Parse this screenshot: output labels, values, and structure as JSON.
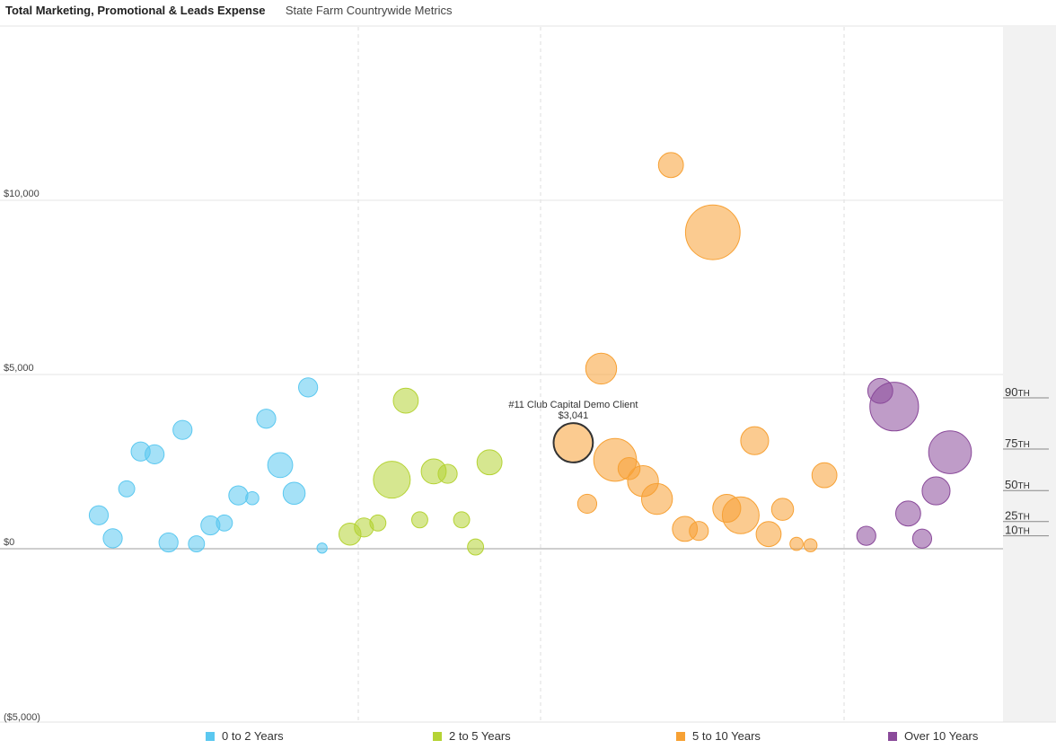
{
  "header": {
    "title": "Total Marketing, Promotional & Leads Expense",
    "subtitle": "State Farm Countrywide Metrics"
  },
  "colors": {
    "0 to 2 Years": "#5bc8f0",
    "2 to 5 Years": "#b5d334",
    "5 to 10 Years": "#f7a134",
    "Over 10 Years": "#8a4a9a"
  },
  "chart_data": {
    "type": "scatter",
    "title": "Total Marketing, Promotional & Leads Expense",
    "xlabel": "",
    "ylabel": "",
    "ylim": [
      -5000,
      15000
    ],
    "yticks": [
      {
        "value": 10000,
        "label": "$10,000"
      },
      {
        "value": 5000,
        "label": "$5,000"
      },
      {
        "value": 0,
        "label": "$0"
      },
      {
        "value": -5000,
        "label": "($5,000)"
      }
    ],
    "grid": true,
    "legend_position": "bottom",
    "percentiles": [
      {
        "num": "90",
        "suffix": "TH",
        "value": 4330
      },
      {
        "num": "75",
        "suffix": "TH",
        "value": 2860
      },
      {
        "num": "50",
        "suffix": "TH",
        "value": 1670
      },
      {
        "num": "25",
        "suffix": "TH",
        "value": 780
      },
      {
        "num": "10",
        "suffix": "TH",
        "value": 370
      }
    ],
    "highlight": {
      "name": "#11 Club Capital Demo Client",
      "value_label": "$3,041",
      "series": "5 to 10 Years",
      "x": 35,
      "y": 3041,
      "size": 3
    },
    "series": [
      {
        "name": "0 to 2 Years",
        "points": [
          {
            "x": 1,
            "y": 960,
            "size": 2
          },
          {
            "x": 2,
            "y": 300,
            "size": 2
          },
          {
            "x": 3,
            "y": 1720,
            "size": 1.5
          },
          {
            "x": 4,
            "y": 2790,
            "size": 2
          },
          {
            "x": 5,
            "y": 2710,
            "size": 2
          },
          {
            "x": 6,
            "y": 180,
            "size": 2
          },
          {
            "x": 7,
            "y": 3410,
            "size": 2
          },
          {
            "x": 8,
            "y": 140,
            "size": 1.5
          },
          {
            "x": 9,
            "y": 670,
            "size": 2
          },
          {
            "x": 10,
            "y": 740,
            "size": 1.5
          },
          {
            "x": 11,
            "y": 1530,
            "size": 2
          },
          {
            "x": 12,
            "y": 1450,
            "size": 1
          },
          {
            "x": 13,
            "y": 3730,
            "size": 2
          },
          {
            "x": 14,
            "y": 2400,
            "size": 3
          },
          {
            "x": 15,
            "y": 1590,
            "size": 2.5
          },
          {
            "x": 16,
            "y": 4630,
            "size": 2
          },
          {
            "x": 17,
            "y": 20,
            "size": 0.5
          }
        ]
      },
      {
        "name": "2 to 5 Years",
        "points": [
          {
            "x": 19,
            "y": 420,
            "size": 2.5
          },
          {
            "x": 20,
            "y": 610,
            "size": 2
          },
          {
            "x": 21,
            "y": 740,
            "size": 1.5
          },
          {
            "x": 22,
            "y": 1980,
            "size": 5
          },
          {
            "x": 23,
            "y": 4250,
            "size": 3
          },
          {
            "x": 24,
            "y": 830,
            "size": 1.5
          },
          {
            "x": 25,
            "y": 2220,
            "size": 3
          },
          {
            "x": 26,
            "y": 2150,
            "size": 2
          },
          {
            "x": 27,
            "y": 830,
            "size": 1.5
          },
          {
            "x": 28,
            "y": 50,
            "size": 1.5
          },
          {
            "x": 29,
            "y": 2480,
            "size": 3
          }
        ]
      },
      {
        "name": "5 to 10 Years",
        "points": [
          {
            "x": 36,
            "y": 1290,
            "size": 2
          },
          {
            "x": 37,
            "y": 5170,
            "size": 4
          },
          {
            "x": 38,
            "y": 2550,
            "size": 6
          },
          {
            "x": 39,
            "y": 2300,
            "size": 2.5
          },
          {
            "x": 40,
            "y": 1940,
            "size": 4
          },
          {
            "x": 41,
            "y": 1430,
            "size": 4
          },
          {
            "x": 42,
            "y": 11010,
            "size": 3
          },
          {
            "x": 43,
            "y": 570,
            "size": 3
          },
          {
            "x": 44,
            "y": 510,
            "size": 2
          },
          {
            "x": 45,
            "y": 9080,
            "size": 8
          },
          {
            "x": 46,
            "y": 1160,
            "size": 3.5
          },
          {
            "x": 47,
            "y": 960,
            "size": 5
          },
          {
            "x": 48,
            "y": 3100,
            "size": 3.5
          },
          {
            "x": 49,
            "y": 420,
            "size": 3
          },
          {
            "x": 50,
            "y": 1130,
            "size": 2.5
          },
          {
            "x": 51,
            "y": 140,
            "size": 1
          },
          {
            "x": 52,
            "y": 100,
            "size": 1
          },
          {
            "x": 53,
            "y": 2110,
            "size": 3
          }
        ]
      },
      {
        "name": "Over 10 Years",
        "points": [
          {
            "x": 56,
            "y": 370,
            "size": 2
          },
          {
            "x": 57,
            "y": 4530,
            "size": 3
          },
          {
            "x": 58,
            "y": 4080,
            "size": 7
          },
          {
            "x": 59,
            "y": 1010,
            "size": 3
          },
          {
            "x": 60,
            "y": 290,
            "size": 2
          },
          {
            "x": 61,
            "y": 1660,
            "size": 3.5
          },
          {
            "x": 62,
            "y": 2770,
            "size": 6
          }
        ]
      }
    ]
  }
}
